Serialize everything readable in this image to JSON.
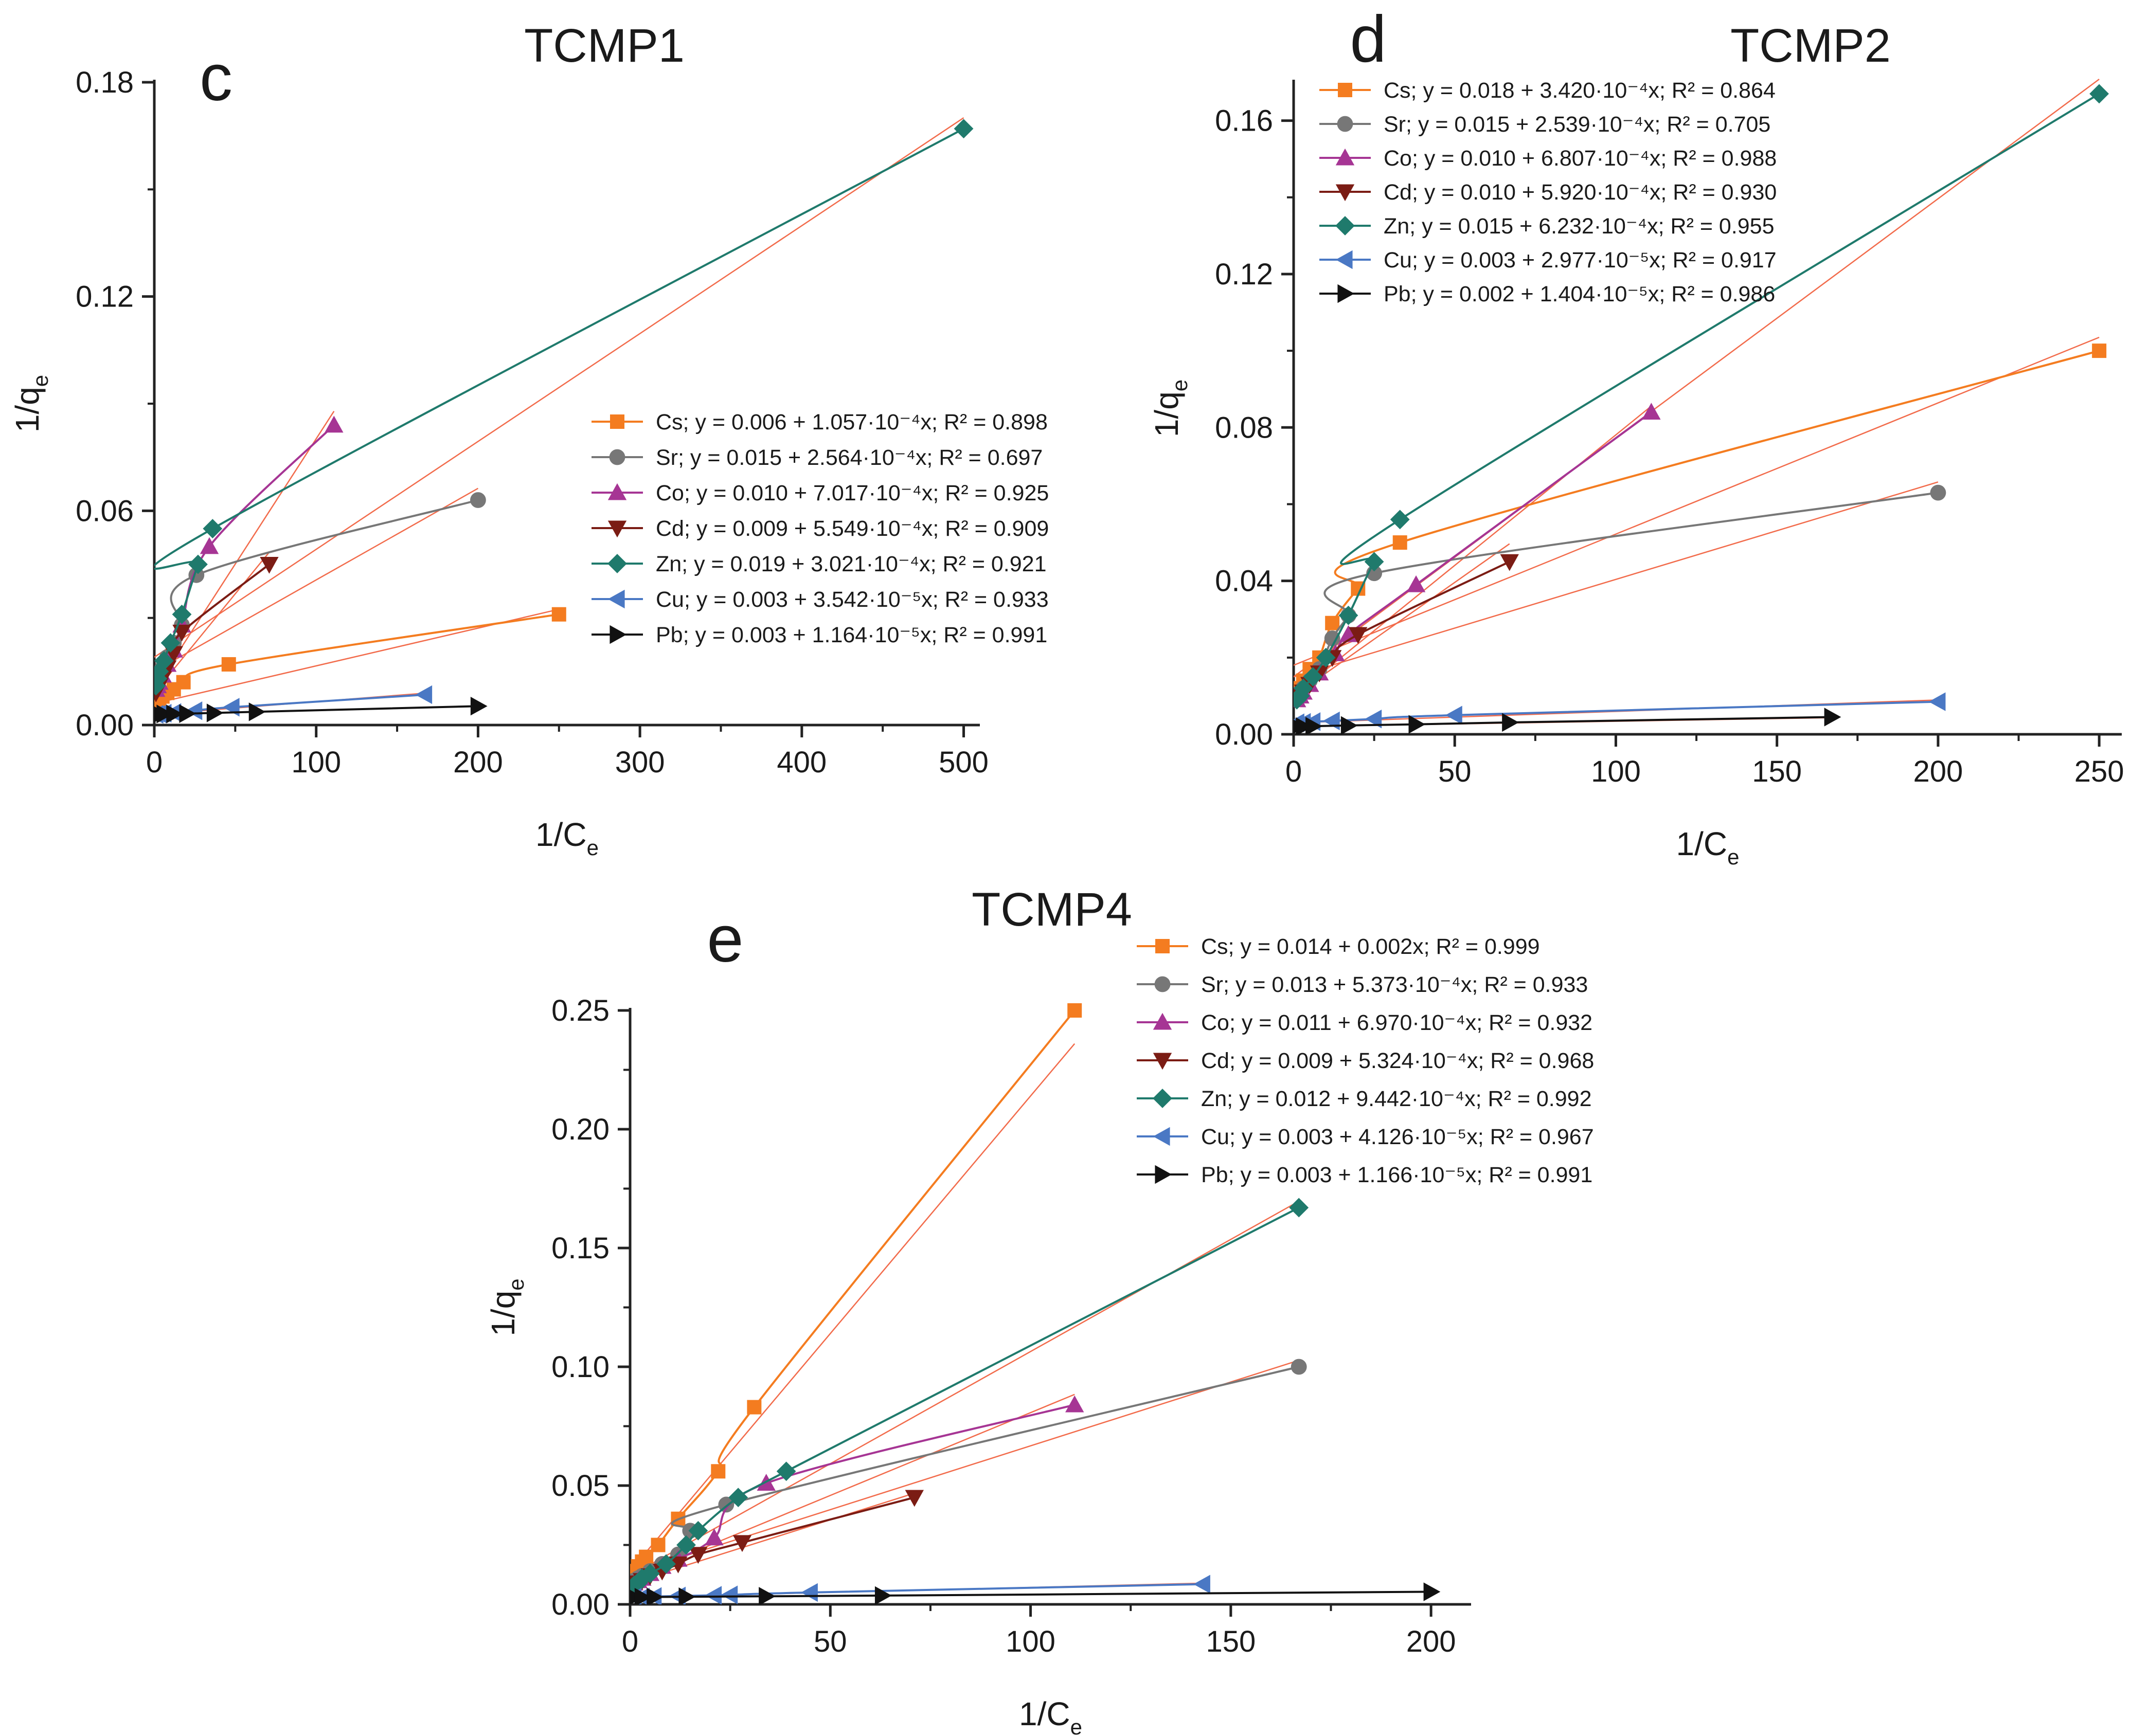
{
  "figure": {
    "description": "Three scatter/line charts of 1/qe versus 1/Ce with fitted linear regression lines"
  },
  "colors": {
    "Cs": "#f47c20",
    "Sr": "#777777",
    "Co": "#a63594",
    "Cd": "#7b1c14",
    "Zn": "#1f7a6c",
    "Cu": "#4a78c4",
    "Pb": "#111111",
    "fit": "#f26b4b"
  },
  "chart_data": [
    {
      "id": "c",
      "type": "line",
      "letter": "c",
      "title": "TCMP1",
      "xlabel": "1/C",
      "xlabel_sub": "e",
      "ylabel": "1/q",
      "ylabel_sub": "e",
      "xlim": [
        0,
        510
      ],
      "ylim": [
        0,
        0.18
      ],
      "xticks": [
        0,
        100,
        200,
        300,
        400,
        500
      ],
      "xtick_labels": [
        "0",
        "100",
        "200",
        "300",
        "400",
        "500"
      ],
      "yticks": [
        0,
        0.06,
        0.12,
        0.18
      ],
      "ytick_labels": [
        "0.00",
        "0.06",
        "0.12",
        "0.18"
      ],
      "legend_position": "middle-right",
      "series": [
        {
          "name": "Cs",
          "marker": "square",
          "legend_label": "Cs; y = 0.006 + 1.057·10⁻⁴x; R² = 0.898",
          "intercept": 0.006,
          "slope": 0.0001057,
          "x": [
            1,
            2,
            3,
            5,
            8,
            12,
            18,
            46,
            250
          ],
          "y": [
            0.006,
            0.0065,
            0.007,
            0.008,
            0.009,
            0.01,
            0.012,
            0.017,
            0.031
          ]
        },
        {
          "name": "Sr",
          "marker": "circle",
          "legend_label": "Sr; y = 0.015 + 2.564·10⁻⁴x; R² = 0.697",
          "intercept": 0.015,
          "slope": 0.0002564,
          "x": [
            1,
            2,
            3,
            5,
            8,
            12,
            17,
            26,
            200
          ],
          "y": [
            0.012,
            0.013,
            0.014,
            0.016,
            0.019,
            0.023,
            0.028,
            0.042,
            0.063
          ]
        },
        {
          "name": "Co",
          "marker": "triangle-up",
          "legend_label": "Co; y = 0.010 + 7.017·10⁻⁴x; R² = 0.925",
          "intercept": 0.01,
          "slope": 0.0007017,
          "x": [
            1,
            2,
            3,
            5,
            8,
            12,
            17,
            34,
            111
          ],
          "y": [
            0.01,
            0.011,
            0.012,
            0.014,
            0.017,
            0.021,
            0.028,
            0.05,
            0.084
          ]
        },
        {
          "name": "Cd",
          "marker": "triangle-down",
          "legend_label": "Cd; y = 0.009 + 5.549·10⁻⁴x; R² = 0.909",
          "intercept": 0.009,
          "slope": 0.0005549,
          "x": [
            1,
            2,
            3,
            5,
            8,
            12,
            17,
            71
          ],
          "y": [
            0.009,
            0.01,
            0.011,
            0.013,
            0.016,
            0.02,
            0.026,
            0.045
          ]
        },
        {
          "name": "Zn",
          "marker": "diamond",
          "legend_label": "Zn; y = 0.019 + 3.021·10⁻⁴x; R² = 0.921",
          "intercept": 0.019,
          "slope": 0.0003021,
          "x": [
            1,
            2,
            3,
            6,
            10,
            17,
            27,
            36,
            500
          ],
          "y": [
            0.011,
            0.013,
            0.015,
            0.018,
            0.023,
            0.031,
            0.045,
            0.055,
            0.167
          ]
        },
        {
          "name": "Cu",
          "marker": "triangle-left",
          "legend_label": "Cu; y = 0.003 + 3.542·10⁻⁵x; R² = 0.933",
          "intercept": 0.003,
          "slope": 3.542e-05,
          "x": [
            1,
            3,
            6,
            12,
            25,
            48,
            167
          ],
          "y": [
            0.003,
            0.0031,
            0.0033,
            0.0035,
            0.004,
            0.005,
            0.0085
          ]
        },
        {
          "name": "Pb",
          "marker": "triangle-right",
          "legend_label": "Pb; y = 0.003 + 1.164·10⁻⁵x; R² = 0.991",
          "intercept": 0.003,
          "slope": 1.164e-05,
          "x": [
            1,
            3,
            6,
            12,
            20,
            37,
            63,
            200
          ],
          "y": [
            0.003,
            0.003,
            0.0031,
            0.0031,
            0.0032,
            0.0034,
            0.0037,
            0.0053
          ]
        }
      ]
    },
    {
      "id": "d",
      "type": "line",
      "letter": "d",
      "title": "TCMP2",
      "xlabel": "1/C",
      "xlabel_sub": "e",
      "ylabel": "1/q",
      "ylabel_sub": "e",
      "xlim": [
        0,
        257
      ],
      "ylim": [
        0,
        0.17
      ],
      "xticks": [
        0,
        50,
        100,
        150,
        200,
        250
      ],
      "xtick_labels": [
        "0",
        "50",
        "100",
        "150",
        "200",
        "250"
      ],
      "yticks": [
        0,
        0.04,
        0.08,
        0.12,
        0.16
      ],
      "ytick_labels": [
        "0.00",
        "0.04",
        "0.08",
        "0.12",
        "0.16"
      ],
      "legend_position": "top-left",
      "series": [
        {
          "name": "Cs",
          "marker": "square",
          "legend_label": "Cs; y = 0.018 + 3.420·10⁻⁴x; R² = 0.864",
          "intercept": 0.018,
          "slope": 0.000342,
          "x": [
            1,
            2,
            3,
            5,
            8,
            12,
            20,
            33,
            250
          ],
          "y": [
            0.011,
            0.012,
            0.014,
            0.017,
            0.02,
            0.029,
            0.038,
            0.05,
            0.1
          ]
        },
        {
          "name": "Sr",
          "marker": "circle",
          "legend_label": "Sr; y = 0.015 + 2.539·10⁻⁴x; R² = 0.705",
          "intercept": 0.015,
          "slope": 0.0002539,
          "x": [
            1,
            2,
            3,
            5,
            8,
            12,
            17,
            25,
            200
          ],
          "y": [
            0.01,
            0.011,
            0.012,
            0.014,
            0.017,
            0.025,
            0.031,
            0.042,
            0.063
          ]
        },
        {
          "name": "Co",
          "marker": "triangle-up",
          "legend_label": "Co; y = 0.010 + 6.807·10⁻⁴x; R² = 0.988",
          "intercept": 0.01,
          "slope": 0.0006807,
          "x": [
            1,
            2,
            3,
            5,
            8,
            13,
            17,
            38,
            111
          ],
          "y": [
            0.009,
            0.01,
            0.011,
            0.013,
            0.016,
            0.021,
            0.026,
            0.039,
            0.084
          ]
        },
        {
          "name": "Cd",
          "marker": "triangle-down",
          "legend_label": "Cd; y = 0.010 + 5.920·10⁻⁴x; R² = 0.930",
          "intercept": 0.01,
          "slope": 0.000592,
          "x": [
            1,
            2,
            3,
            5,
            8,
            12,
            20,
            67
          ],
          "y": [
            0.009,
            0.01,
            0.011,
            0.013,
            0.016,
            0.02,
            0.026,
            0.045
          ]
        },
        {
          "name": "Zn",
          "marker": "diamond",
          "legend_label": "Zn; y = 0.015 + 6.232·10⁻⁴x; R² = 0.955",
          "intercept": 0.015,
          "slope": 0.0006232,
          "x": [
            1,
            2,
            3,
            6,
            10,
            17,
            25,
            33,
            250
          ],
          "y": [
            0.009,
            0.01,
            0.012,
            0.015,
            0.02,
            0.031,
            0.045,
            0.056,
            0.167
          ]
        },
        {
          "name": "Cu",
          "marker": "triangle-left",
          "legend_label": "Cu; y = 0.003 + 2.977·10⁻⁵x; R² = 0.917",
          "intercept": 0.003,
          "slope": 2.977e-05,
          "x": [
            1,
            3,
            6,
            12,
            25,
            50,
            200
          ],
          "y": [
            0.003,
            0.0031,
            0.0033,
            0.0035,
            0.004,
            0.005,
            0.0085
          ]
        },
        {
          "name": "Pb",
          "marker": "triangle-right",
          "legend_label": "Pb; y = 0.002 + 1.404·10⁻⁵x; R² = 0.986",
          "intercept": 0.002,
          "slope": 1.404e-05,
          "x": [
            1,
            3,
            6,
            17,
            38,
            67,
            167
          ],
          "y": [
            0.002,
            0.002,
            0.0021,
            0.0023,
            0.0026,
            0.0031,
            0.0045
          ]
        }
      ]
    },
    {
      "id": "e",
      "type": "line",
      "letter": "e",
      "title": "TCMP4",
      "xlabel": "1/C",
      "xlabel_sub": "e",
      "ylabel": "1/q",
      "ylabel_sub": "e",
      "xlim": [
        0,
        210
      ],
      "ylim": [
        0,
        0.25
      ],
      "xticks": [
        0,
        50,
        100,
        150,
        200
      ],
      "xtick_labels": [
        "0",
        "50",
        "100",
        "150",
        "200"
      ],
      "yticks": [
        0,
        0.05,
        0.1,
        0.15,
        0.2,
        0.25
      ],
      "ytick_labels": [
        "0.00",
        "0.05",
        "0.10",
        "0.15",
        "0.20",
        "0.25"
      ],
      "legend_position": "top-right",
      "series": [
        {
          "name": "Cs",
          "marker": "square",
          "legend_label": "Cs; y = 0.014 + 0.002x; R² = 0.999",
          "intercept": 0.014,
          "slope": 0.002,
          "x": [
            1,
            2,
            3,
            4,
            7,
            12,
            22,
            31,
            111
          ],
          "y": [
            0.014,
            0.016,
            0.018,
            0.02,
            0.025,
            0.036,
            0.056,
            0.083,
            0.25
          ]
        },
        {
          "name": "Sr",
          "marker": "circle",
          "legend_label": "Sr; y = 0.013 + 5.373·10⁻⁴x; R² = 0.933",
          "intercept": 0.013,
          "slope": 0.0005373,
          "x": [
            1,
            2,
            3,
            5,
            8,
            12,
            15,
            24,
            167
          ],
          "y": [
            0.01,
            0.011,
            0.012,
            0.014,
            0.017,
            0.021,
            0.031,
            0.042,
            0.1
          ]
        },
        {
          "name": "Co",
          "marker": "triangle-up",
          "legend_label": "Co; y = 0.011 + 6.970·10⁻⁴x; R² = 0.932",
          "intercept": 0.011,
          "slope": 0.000697,
          "x": [
            1,
            2,
            3,
            5,
            8,
            12,
            21,
            34,
            111
          ],
          "y": [
            0.009,
            0.01,
            0.011,
            0.013,
            0.016,
            0.019,
            0.028,
            0.051,
            0.084
          ]
        },
        {
          "name": "Cd",
          "marker": "triangle-down",
          "legend_label": "Cd; y = 0.009 + 5.324·10⁻⁴x; R² = 0.968",
          "intercept": 0.009,
          "slope": 0.0005324,
          "x": [
            1,
            2,
            3,
            5,
            8,
            12,
            17,
            28,
            71
          ],
          "y": [
            0.008,
            0.009,
            0.01,
            0.012,
            0.014,
            0.017,
            0.021,
            0.026,
            0.045
          ]
        },
        {
          "name": "Zn",
          "marker": "diamond",
          "legend_label": "Zn; y = 0.012 + 9.442·10⁻⁴x; R² = 0.992",
          "intercept": 0.012,
          "slope": 0.0009442,
          "x": [
            1,
            2,
            3,
            5,
            9,
            14,
            17,
            27,
            39,
            167
          ],
          "y": [
            0.008,
            0.009,
            0.011,
            0.013,
            0.017,
            0.025,
            0.031,
            0.045,
            0.056,
            0.167
          ]
        },
        {
          "name": "Cu",
          "marker": "triangle-left",
          "legend_label": "Cu; y = 0.003 + 4.126·10⁻⁵x; R² = 0.967",
          "intercept": 0.003,
          "slope": 4.126e-05,
          "x": [
            1,
            3,
            6,
            12,
            21,
            25,
            45,
            143
          ],
          "y": [
            0.003,
            0.0031,
            0.0033,
            0.0035,
            0.0038,
            0.004,
            0.005,
            0.0085
          ]
        },
        {
          "name": "Pb",
          "marker": "triangle-right",
          "legend_label": "Pb; y = 0.003 + 1.166·10⁻⁵x; R² = 0.991",
          "intercept": 0.003,
          "slope": 1.166e-05,
          "x": [
            1,
            3,
            6,
            14,
            34,
            63,
            200
          ],
          "y": [
            0.003,
            0.003,
            0.0031,
            0.0032,
            0.0034,
            0.0037,
            0.0053
          ]
        }
      ]
    }
  ]
}
